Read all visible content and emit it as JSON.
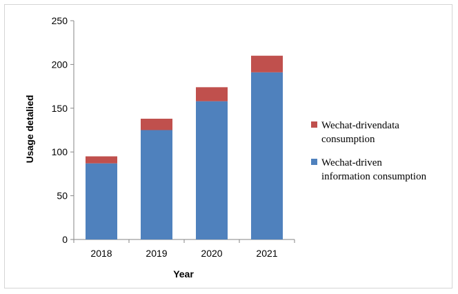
{
  "chart_data": {
    "type": "bar",
    "stacked": true,
    "categories": [
      "2018",
      "2019",
      "2020",
      "2021"
    ],
    "series": [
      {
        "name": "Wechat-driven information consumption",
        "legend_lines": [
          "Wechat-driven",
          "information consumption"
        ],
        "color": "#4f81bd",
        "values": [
          87,
          125,
          158,
          191
        ]
      },
      {
        "name": "Wechat-drivendata consumption",
        "legend_lines": [
          "Wechat-drivendata",
          "consumption"
        ],
        "color": "#c0504d",
        "values": [
          8,
          13,
          16,
          19
        ]
      }
    ],
    "title": "",
    "xlabel": "Year",
    "ylabel": "Usage detalied",
    "ylim": [
      0,
      250
    ],
    "yticks": [
      0,
      50,
      100,
      150,
      200,
      250
    ],
    "grid": false,
    "legend_position": "right"
  }
}
